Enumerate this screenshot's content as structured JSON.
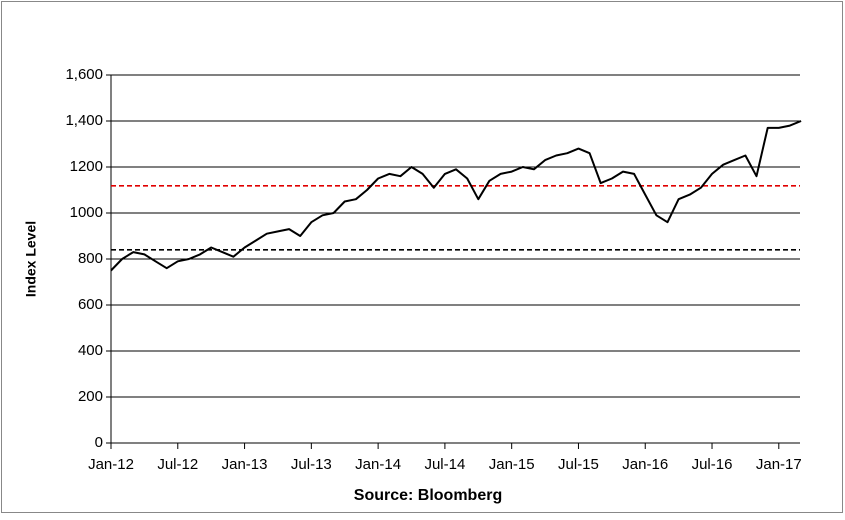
{
  "chart_data": {
    "type": "line",
    "ylabel": "Index Level",
    "xlabel": "Source: Bloomberg",
    "categories": [
      "Jan-12",
      null,
      null,
      null,
      null,
      null,
      "Jul-12",
      null,
      null,
      null,
      null,
      null,
      "Jan-13",
      null,
      null,
      null,
      null,
      null,
      "Jul-13",
      null,
      null,
      null,
      null,
      null,
      "Jan-14",
      null,
      null,
      null,
      null,
      null,
      "Jul-14",
      null,
      null,
      null,
      null,
      null,
      "Jan-15",
      null,
      null,
      null,
      null,
      null,
      "Jul-15",
      null,
      null,
      null,
      null,
      null,
      "Jan-16",
      null,
      null,
      null,
      null,
      null,
      "Jul-16",
      null,
      null,
      null,
      null,
      null,
      "Jan-17",
      null,
      null
    ],
    "series": [
      {
        "color": "#000000",
        "values": [
          750,
          800,
          830,
          820,
          790,
          760,
          790,
          800,
          820,
          850,
          830,
          810,
          850,
          880,
          910,
          920,
          930,
          900,
          960,
          990,
          1000,
          1050,
          1060,
          1100,
          1150,
          1170,
          1160,
          1200,
          1170,
          1110,
          1170,
          1190,
          1150,
          1060,
          1140,
          1170,
          1180,
          1200,
          1190,
          1230,
          1250,
          1260,
          1280,
          1260,
          1130,
          1150,
          1180,
          1170,
          1080,
          990,
          960,
          1060,
          1080,
          1110,
          1170,
          1210,
          1230,
          1250,
          1160,
          1370,
          1370,
          1380,
          1400
        ]
      }
    ],
    "reference_lines": [
      {
        "value": 840,
        "color": "#000000"
      },
      {
        "value": 1118,
        "color": "#e00000"
      }
    ],
    "ylim": [
      0,
      1600
    ],
    "yticks": [
      0,
      200,
      400,
      600,
      800,
      1000,
      1200,
      {
        "value": 1400,
        "label": "1,400"
      },
      {
        "value": 1600,
        "label": "1,600"
      }
    ],
    "grid": true
  }
}
